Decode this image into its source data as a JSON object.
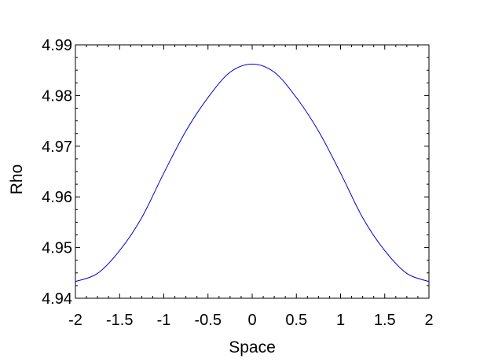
{
  "chart_data": {
    "type": "line",
    "title": "",
    "xlabel": "Space",
    "ylabel": "Rho",
    "xlim": [
      -2,
      2
    ],
    "ylim": [
      4.94,
      4.99
    ],
    "x_ticks": [
      -2,
      -1.5,
      -1,
      -0.5,
      0,
      0.5,
      1,
      1.5,
      2
    ],
    "x_tick_labels": [
      "-2",
      "-1.5",
      "-1",
      "-0.5",
      "0",
      "0.5",
      "1",
      "1.5",
      "2"
    ],
    "y_ticks": [
      4.94,
      4.95,
      4.96,
      4.97,
      4.98,
      4.99
    ],
    "y_tick_labels": [
      "4.94",
      "4.95",
      "4.96",
      "4.97",
      "4.98",
      "4.99"
    ],
    "grid": false,
    "legend": "none",
    "series": [
      {
        "color": "#0000cc",
        "x": [
          -2,
          -1.75,
          -1.5,
          -1.25,
          -1,
          -0.75,
          -0.5,
          -0.25,
          0,
          0.25,
          0.5,
          0.75,
          1,
          1.25,
          1.5,
          1.75,
          2
        ],
        "y": [
          4.9433,
          4.9449,
          4.9494,
          4.9559,
          4.9647,
          4.973,
          4.9796,
          4.9846,
          4.9862,
          4.9846,
          4.9796,
          4.973,
          4.9647,
          4.9559,
          4.9494,
          4.9449,
          4.9433
        ]
      }
    ]
  }
}
